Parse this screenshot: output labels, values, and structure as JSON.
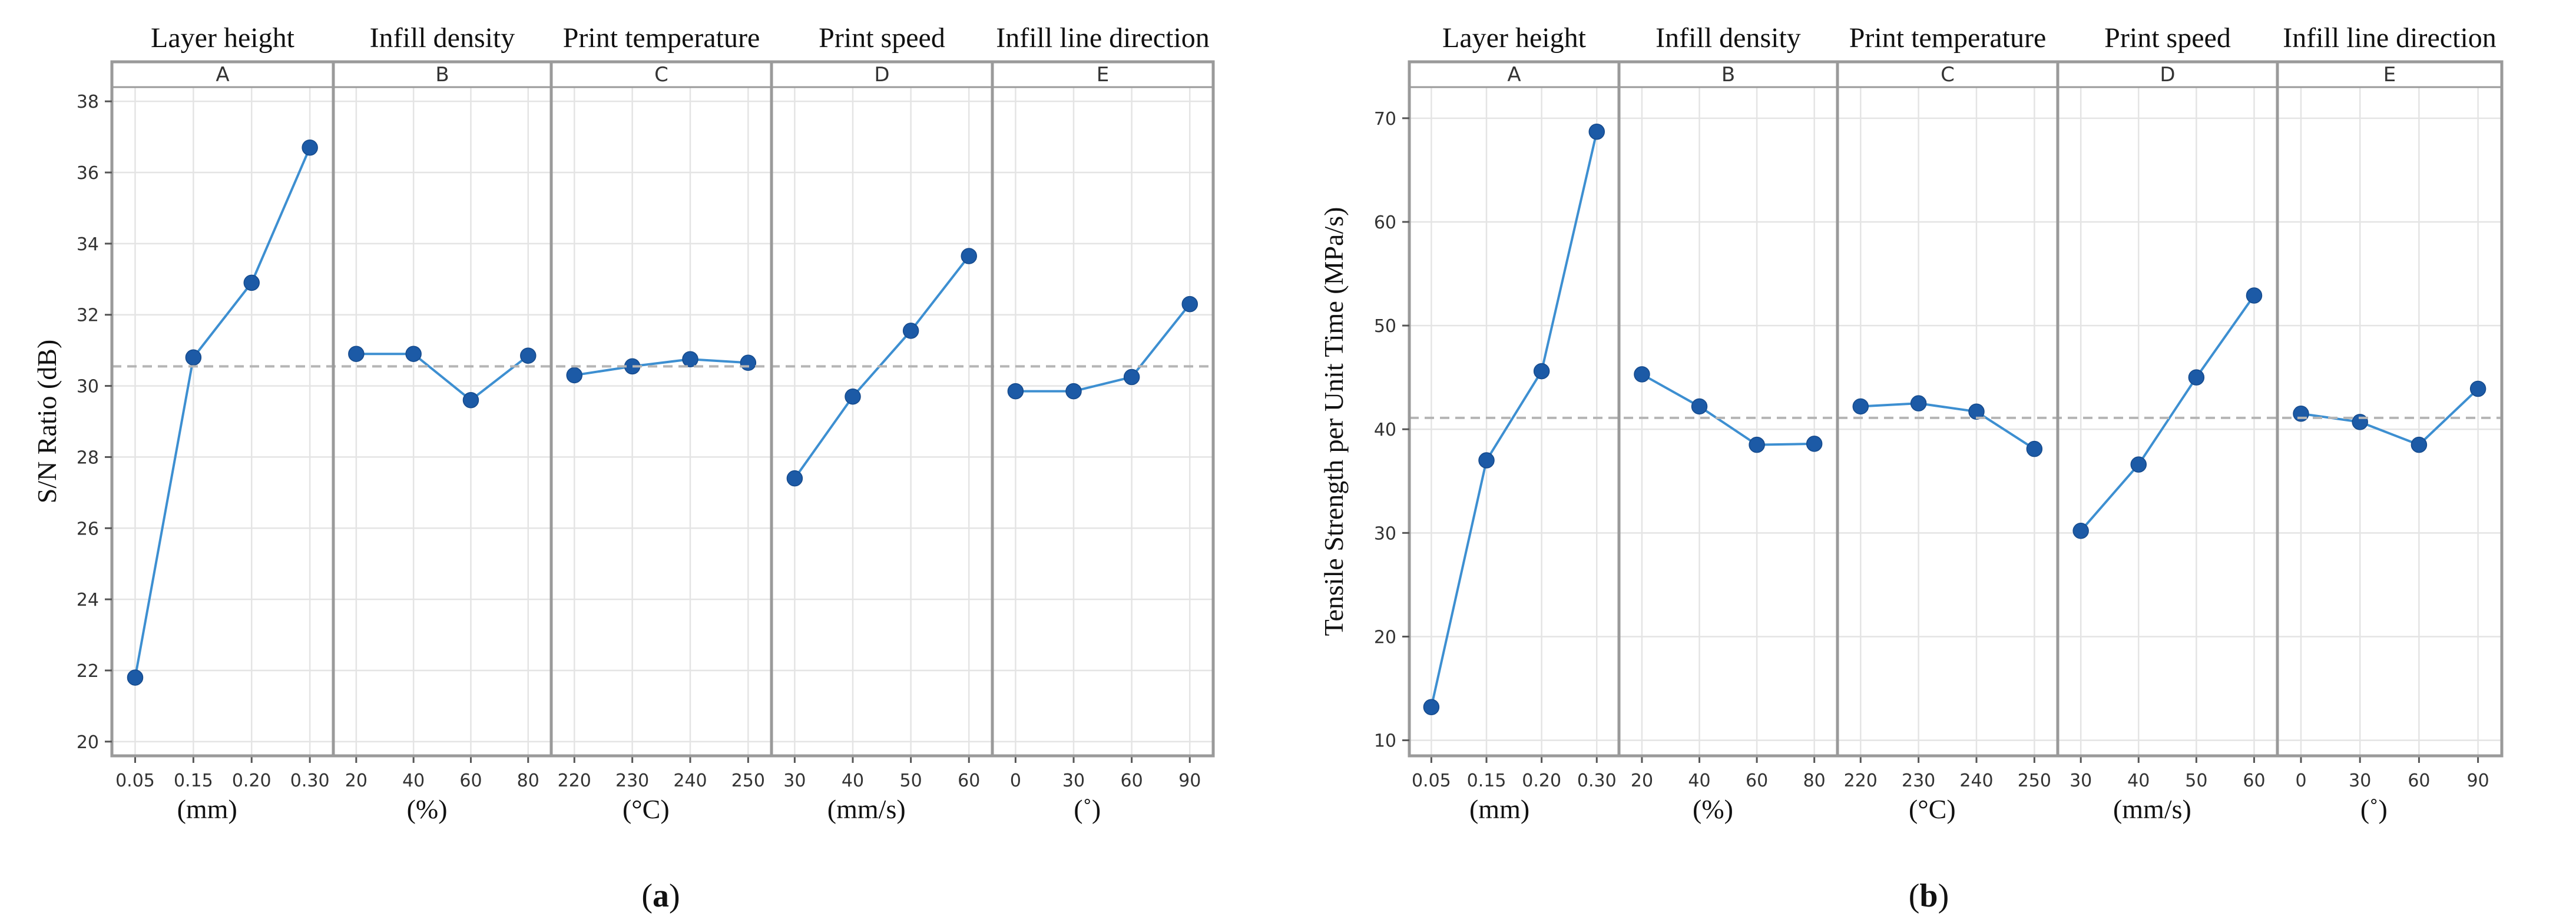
{
  "chart_data": [
    {
      "type": "line",
      "panel_label": "a",
      "ylabel": "S/N Ratio  (dB)",
      "ylim": [
        19.6,
        38.4
      ],
      "yticks": [
        20,
        22,
        24,
        26,
        28,
        30,
        32,
        34,
        36,
        38
      ],
      "reference_mean": 30.55,
      "factors": [
        {
          "title": "Layer height",
          "letter": "A",
          "unit": "(mm)",
          "levels": [
            "0.05",
            "0.15",
            "0.20",
            "0.30"
          ],
          "values": [
            21.8,
            30.8,
            32.9,
            36.7
          ]
        },
        {
          "title": "Infill density",
          "letter": "B",
          "unit": "(%)",
          "levels": [
            "20",
            "40",
            "60",
            "80"
          ],
          "values": [
            30.9,
            30.9,
            29.6,
            30.85
          ]
        },
        {
          "title": "Print temperature",
          "letter": "C",
          "unit": "(°C)",
          "levels": [
            "220",
            "230",
            "240",
            "250"
          ],
          "values": [
            30.3,
            30.55,
            30.75,
            30.65
          ]
        },
        {
          "title": "Print speed",
          "letter": "D",
          "unit": "(mm/s)",
          "levels": [
            "30",
            "40",
            "50",
            "60"
          ],
          "values": [
            27.4,
            29.7,
            31.55,
            33.65
          ]
        },
        {
          "title": "Infill line direction",
          "letter": "E",
          "unit": "(˚)",
          "levels": [
            "0",
            "30",
            "60",
            "90"
          ],
          "values": [
            29.85,
            29.85,
            30.25,
            32.3
          ]
        }
      ]
    },
    {
      "type": "line",
      "panel_label": "b",
      "ylabel": "Tensile Strength per Unit Time  (MPa/s)",
      "ylim": [
        8.5,
        73
      ],
      "yticks": [
        10,
        20,
        30,
        40,
        50,
        60,
        70
      ],
      "reference_mean": 41.1,
      "factors": [
        {
          "title": "Layer height",
          "letter": "A",
          "unit": "(mm)",
          "levels": [
            "0.05",
            "0.15",
            "0.20",
            "0.30"
          ],
          "values": [
            13.2,
            37.0,
            45.6,
            68.7
          ]
        },
        {
          "title": "Infill density",
          "letter": "B",
          "unit": "(%)",
          "levels": [
            "20",
            "40",
            "60",
            "80"
          ],
          "values": [
            45.3,
            42.2,
            38.5,
            38.6
          ]
        },
        {
          "title": "Print temperature",
          "letter": "C",
          "unit": "(°C)",
          "levels": [
            "220",
            "230",
            "240",
            "250"
          ],
          "values": [
            42.2,
            42.5,
            41.7,
            38.1
          ]
        },
        {
          "title": "Print speed",
          "letter": "D",
          "unit": "(mm/s)",
          "levels": [
            "30",
            "40",
            "50",
            "60"
          ],
          "values": [
            30.2,
            36.6,
            45.0,
            52.9
          ]
        },
        {
          "title": "Infill line direction",
          "letter": "E",
          "unit": "(˚)",
          "levels": [
            "0",
            "30",
            "60",
            "90"
          ],
          "values": [
            41.5,
            40.7,
            38.5,
            43.9
          ]
        }
      ]
    }
  ]
}
